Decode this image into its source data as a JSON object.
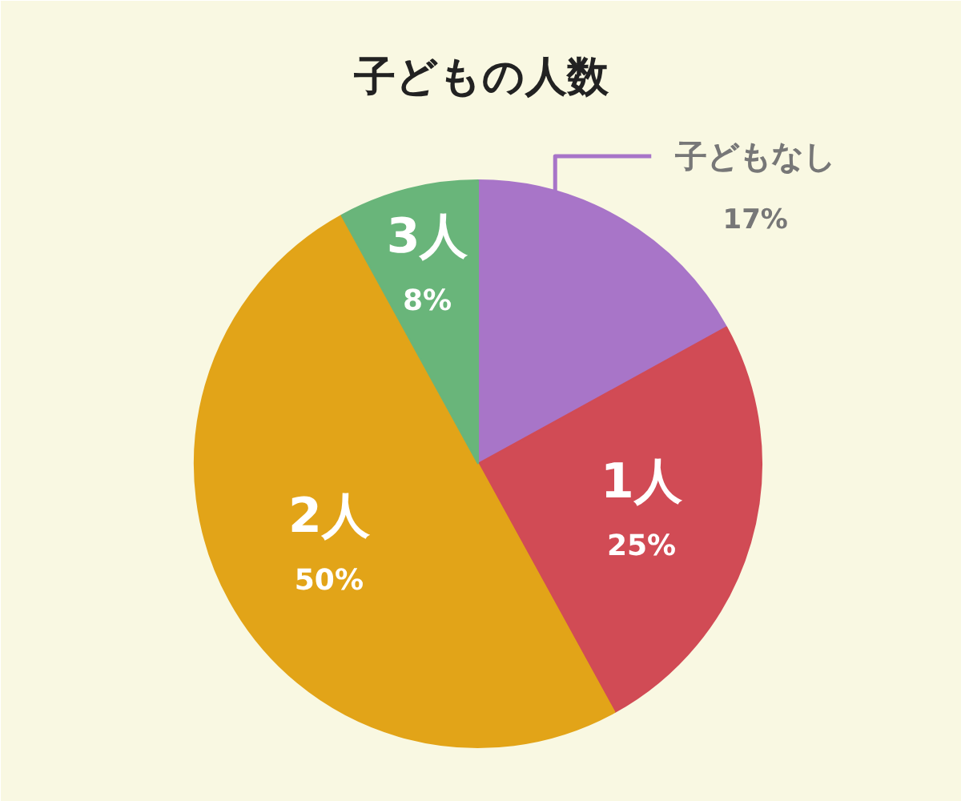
{
  "chart_data": {
    "type": "pie",
    "title": "子どもの人数",
    "categories": [
      "子どもなし",
      "1人",
      "2人",
      "3人"
    ],
    "values": [
      17,
      25,
      50,
      8
    ],
    "value_labels": [
      "17%",
      "25%",
      "50%",
      "8%"
    ],
    "colors": [
      "#a875c8",
      "#d14b55",
      "#e2a418",
      "#69b57a"
    ]
  }
}
